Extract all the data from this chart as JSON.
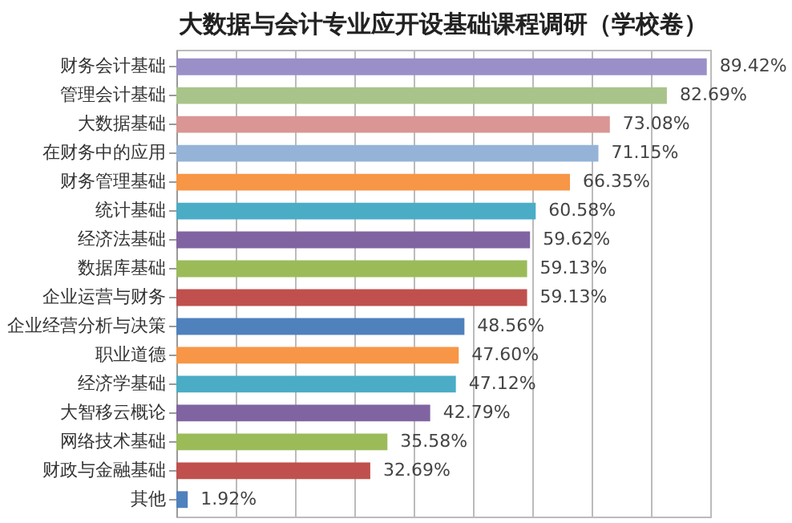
{
  "chart_data": {
    "type": "bar",
    "orientation": "horizontal",
    "title": "大数据与会计专业应开设基础课程调研（学校卷）",
    "categories": [
      "财务会计基础",
      "管理会计基础",
      "大数据基础",
      "在财务中的应用",
      "财务管理基础",
      "统计基础",
      "经济法基础",
      "数据库基础",
      "企业运营与财务",
      "企业经营分析与决策",
      "职业道德",
      "经济学基础",
      "大智移云概论",
      "网络技术基础",
      "财政与金融基础",
      "其他"
    ],
    "values": [
      89.42,
      82.69,
      73.08,
      71.15,
      66.35,
      60.58,
      59.62,
      59.13,
      59.13,
      48.56,
      47.6,
      47.12,
      42.79,
      35.58,
      32.69,
      1.92
    ],
    "value_labels": [
      "89.42%",
      "82.69%",
      "73.08%",
      "71.15%",
      "66.35%",
      "60.58%",
      "59.62%",
      "59.13%",
      "59.13%",
      "48.56%",
      "47.60%",
      "47.12%",
      "42.79%",
      "35.58%",
      "32.69%",
      "1.92%"
    ],
    "colors": [
      "#9b8fc8",
      "#a9c48a",
      "#d99694",
      "#95b3d7",
      "#f79646",
      "#4bacc6",
      "#8064a2",
      "#9bbb59",
      "#c0504d",
      "#4f81bd",
      "#f79646",
      "#4bacc6",
      "#8064a2",
      "#9bbb59",
      "#c0504d",
      "#4f81bd"
    ],
    "xlim": [
      0,
      90
    ],
    "xticks": [
      {
        "value": 0,
        "label": null
      },
      {
        "value": 10,
        "label": null
      },
      {
        "value": 20,
        "label": null
      },
      {
        "value": 30,
        "label": null
      },
      {
        "value": 40,
        "label": null
      },
      {
        "value": 50,
        "label": null
      },
      {
        "value": 60,
        "label": null
      },
      {
        "value": 70,
        "label": null
      },
      {
        "value": 80,
        "label": null
      },
      {
        "value": 90,
        "label": null
      }
    ],
    "grid": "x",
    "tick_labels": "y"
  }
}
